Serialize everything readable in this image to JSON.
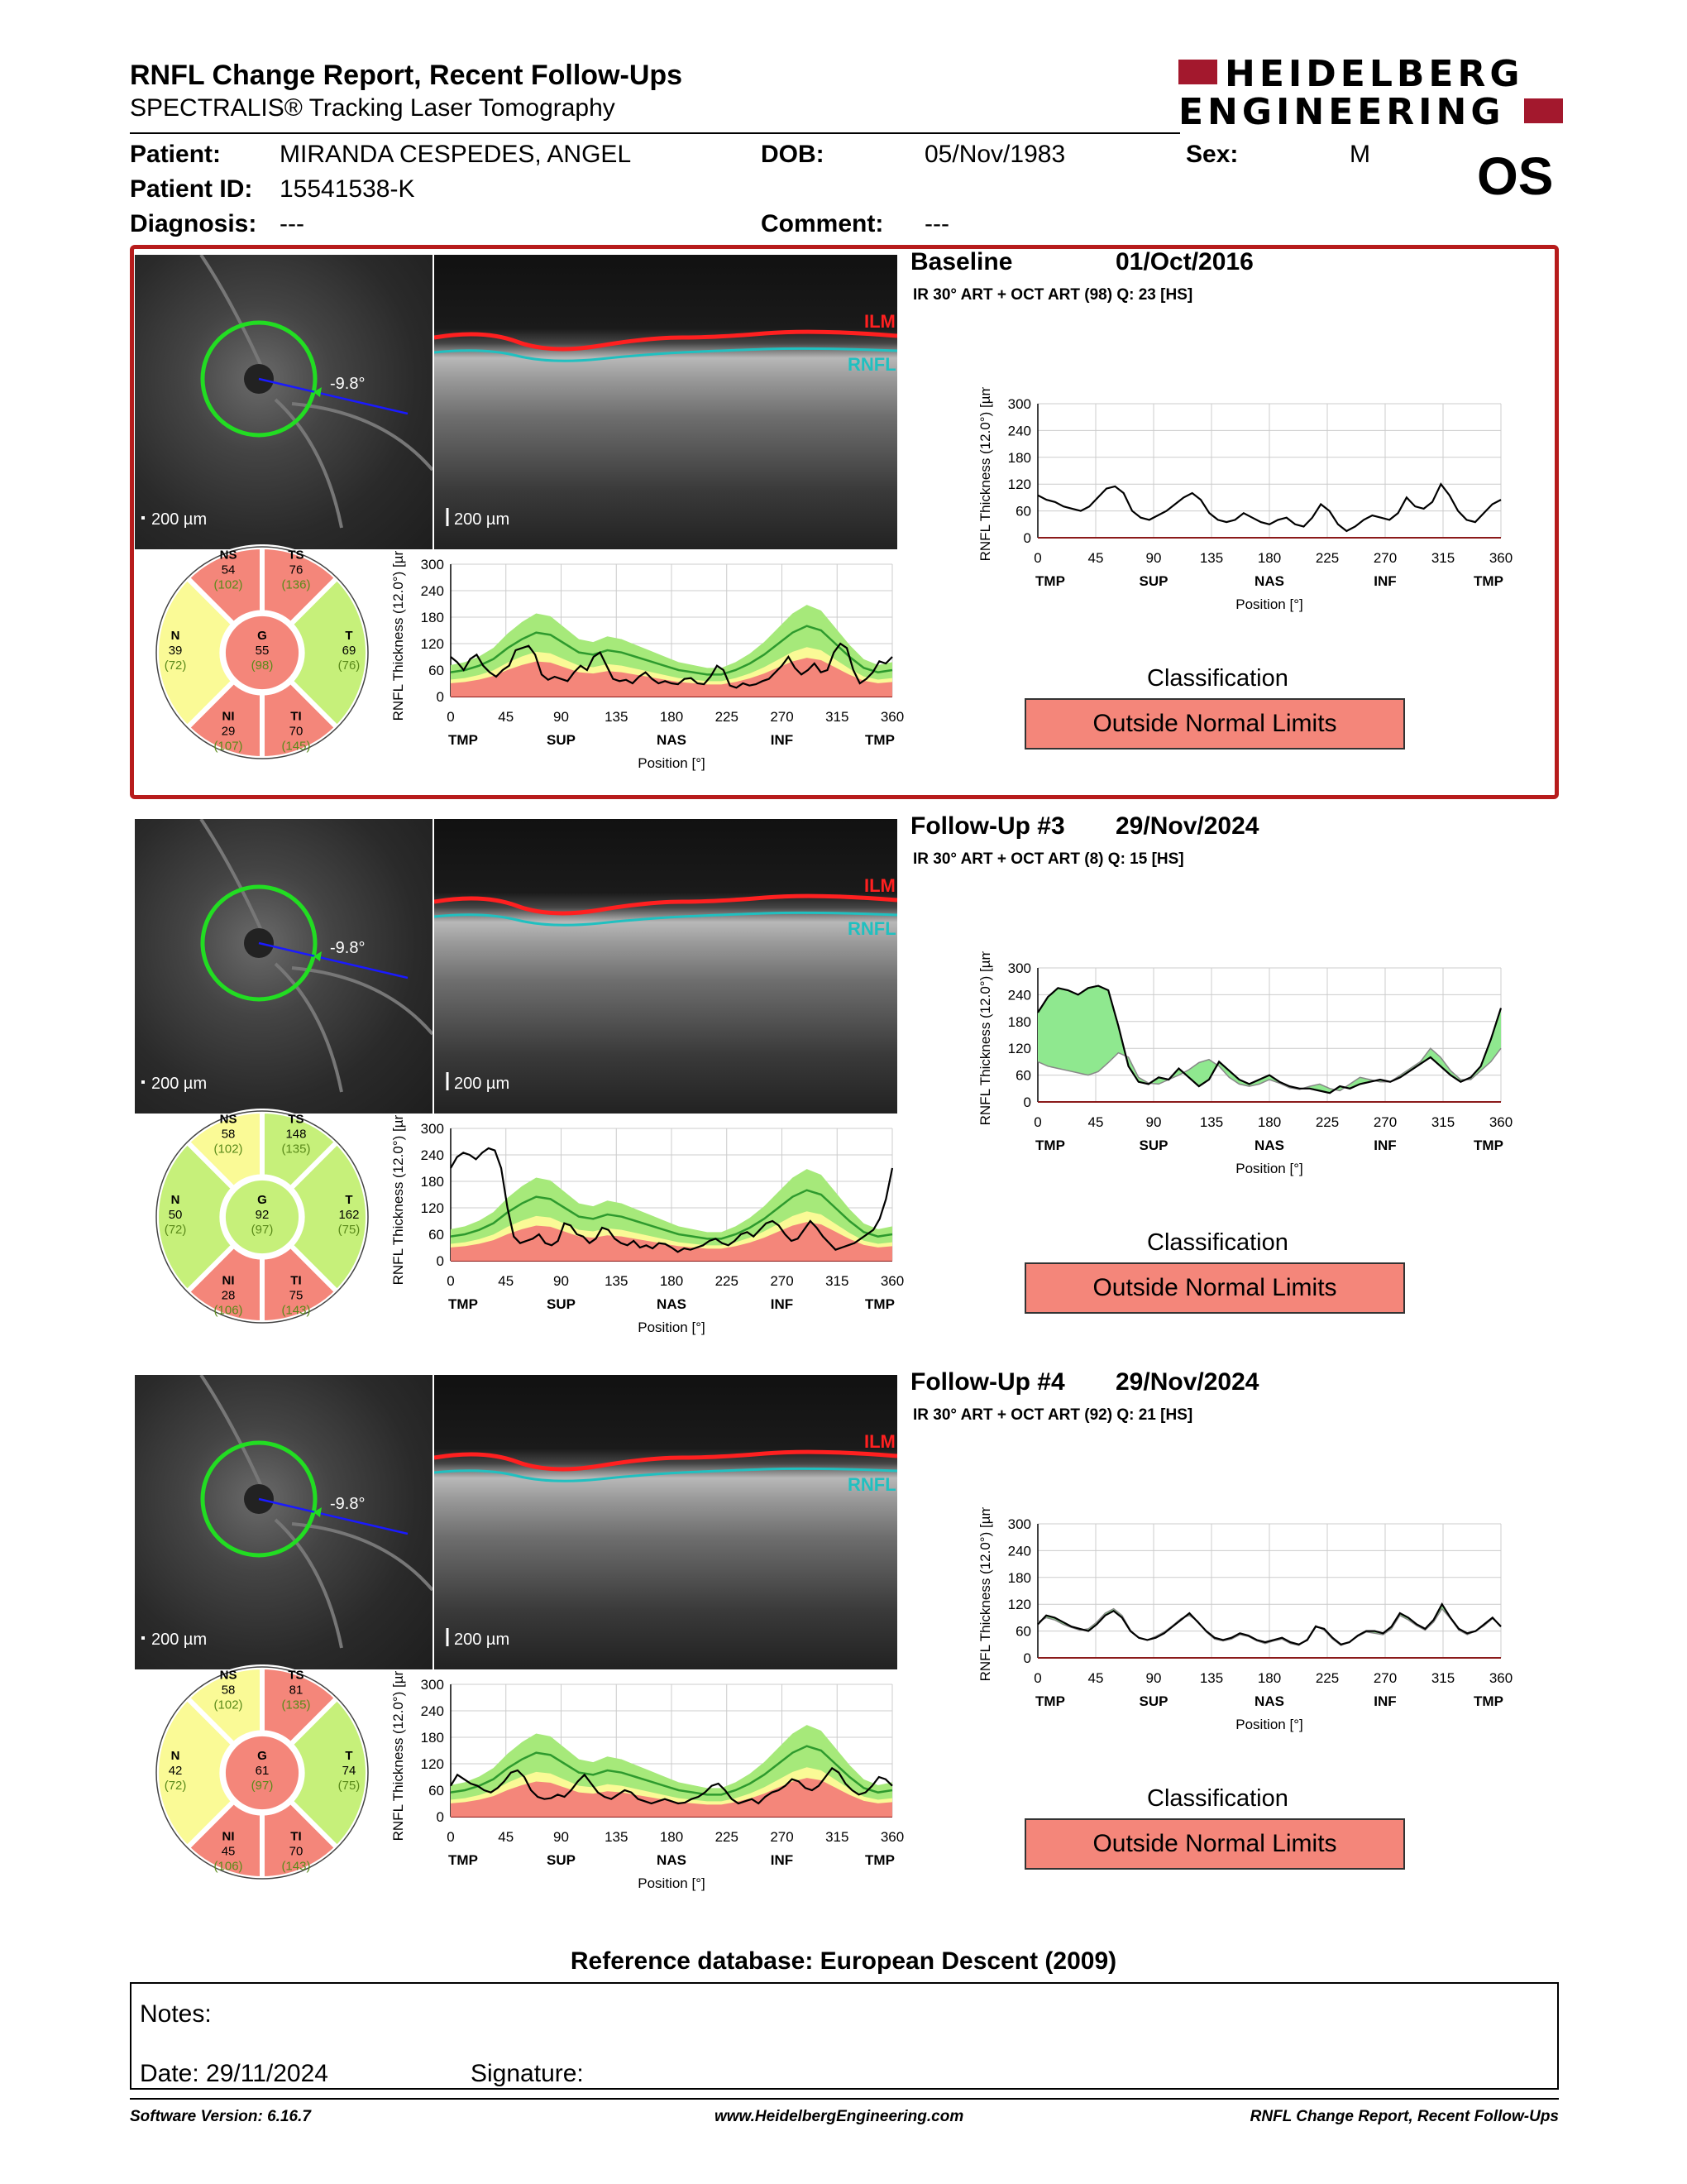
{
  "header": {
    "title": "RNFL Change Report, Recent Follow-Ups",
    "subtitle": "SPECTRALIS® Tracking Laser Tomography",
    "logo_line1": "HEIDELBERG",
    "logo_line2": "ENGINEERING",
    "brand_color": "#a3182d"
  },
  "patient": {
    "patient_label": "Patient:",
    "name": "MIRANDA CESPEDES, ANGEL",
    "dob_label": "DOB:",
    "dob": "05/Nov/1983",
    "sex_label": "Sex:",
    "sex": "M",
    "id_label": "Patient ID:",
    "id": "15541538-K",
    "diagnosis_label": "Diagnosis:",
    "diagnosis": "---",
    "comment_label": "Comment:",
    "comment": "---",
    "eye": "OS"
  },
  "common": {
    "scale": "200 µm",
    "angle": "-9.8°",
    "ilm": "ILM",
    "rnfl": "RNFL",
    "y_axis": "RNFL Thickness (12.0°) [µm]",
    "x_axis": "Position [°]",
    "x_ticks": [
      "0",
      "45",
      "90",
      "135",
      "180",
      "225",
      "270",
      "315",
      "360"
    ],
    "y_ticks": [
      "0",
      "60",
      "120",
      "180",
      "240",
      "300"
    ],
    "sectors": [
      "TMP",
      "SUP",
      "NAS",
      "INF",
      "TMP"
    ],
    "classification_label": "Classification"
  },
  "panels": [
    {
      "title": "Baseline",
      "date": "01/Oct/2016",
      "info": "IR 30° ART + OCT ART (98) Q: 23 [HS]",
      "classification": "Outside Normal Limits",
      "selected": true,
      "sectors": {
        "NS": {
          "v": "54",
          "n": "(102)",
          "c": "red"
        },
        "TS": {
          "v": "76",
          "n": "(136)",
          "c": "red"
        },
        "N": {
          "v": "39",
          "n": "(72)",
          "c": "yellow"
        },
        "G": {
          "v": "55",
          "n": "(98)",
          "c": "red"
        },
        "T": {
          "v": "69",
          "n": "(76)",
          "c": "green"
        },
        "NI": {
          "v": "29",
          "n": "(107)",
          "c": "red"
        },
        "TI": {
          "v": "70",
          "n": "(145)",
          "c": "red"
        }
      },
      "profile": [
        90,
        78,
        60,
        85,
        95,
        70,
        55,
        45,
        60,
        70,
        105,
        110,
        115,
        95,
        50,
        38,
        45,
        40,
        35,
        55,
        70,
        60,
        90,
        100,
        70,
        40,
        35,
        38,
        30,
        45,
        55,
        40,
        30,
        35,
        30,
        28,
        40,
        42,
        30,
        28,
        45,
        70,
        60,
        25,
        20,
        30,
        25,
        28,
        35,
        40,
        55,
        70,
        90,
        65,
        50,
        60,
        75,
        55,
        60,
        100,
        120,
        110,
        60,
        30,
        40,
        55,
        80,
        75,
        90
      ],
      "ref": [
        55,
        60,
        70,
        85,
        110,
        130,
        145,
        140,
        120,
        100,
        95,
        105,
        100,
        90,
        80,
        70,
        60,
        55,
        50,
        50,
        60,
        75,
        95,
        120,
        145,
        160,
        150,
        120,
        90,
        65,
        55,
        60
      ]
    },
    {
      "title": "Follow-Up #3",
      "date": "29/Nov/2024",
      "info": "IR 30° ART + OCT ART (8) Q: 15 [HS]",
      "classification": "Outside Normal Limits",
      "selected": false,
      "sectors": {
        "NS": {
          "v": "58",
          "n": "(102)",
          "c": "yellow"
        },
        "TS": {
          "v": "148",
          "n": "(135)",
          "c": "green"
        },
        "N": {
          "v": "50",
          "n": "(72)",
          "c": "green"
        },
        "G": {
          "v": "92",
          "n": "(97)",
          "c": "green"
        },
        "T": {
          "v": "162",
          "n": "(75)",
          "c": "green"
        },
        "NI": {
          "v": "28",
          "n": "(106)",
          "c": "red"
        },
        "TI": {
          "v": "75",
          "n": "(143)",
          "c": "red"
        }
      },
      "profile": [
        210,
        235,
        245,
        240,
        230,
        245,
        255,
        250,
        210,
        120,
        55,
        40,
        45,
        50,
        60,
        40,
        35,
        45,
        85,
        80,
        60,
        55,
        40,
        50,
        75,
        70,
        50,
        40,
        35,
        45,
        30,
        35,
        28,
        40,
        38,
        30,
        20,
        28,
        25,
        30,
        35,
        45,
        50,
        40,
        35,
        45,
        60,
        65,
        55,
        70,
        85,
        90,
        80,
        60,
        45,
        50,
        70,
        90,
        75,
        55,
        40,
        25,
        30,
        35,
        40,
        50,
        60,
        70,
        95,
        140,
        210
      ],
      "ref": [
        55,
        60,
        70,
        85,
        110,
        130,
        145,
        140,
        120,
        100,
        95,
        105,
        100,
        90,
        80,
        70,
        60,
        55,
        50,
        50,
        60,
        75,
        95,
        120,
        145,
        160,
        150,
        120,
        90,
        65,
        55,
        60
      ]
    },
    {
      "title": "Follow-Up #4",
      "date": "29/Nov/2024",
      "info": "IR 30° ART + OCT ART (92) Q: 21 [HS]",
      "classification": "Outside Normal Limits",
      "selected": false,
      "sectors": {
        "NS": {
          "v": "58",
          "n": "(102)",
          "c": "yellow"
        },
        "TS": {
          "v": "81",
          "n": "(135)",
          "c": "red"
        },
        "N": {
          "v": "42",
          "n": "(72)",
          "c": "yellow"
        },
        "G": {
          "v": "61",
          "n": "(97)",
          "c": "red"
        },
        "T": {
          "v": "74",
          "n": "(75)",
          "c": "green"
        },
        "NI": {
          "v": "45",
          "n": "(106)",
          "c": "red"
        },
        "TI": {
          "v": "70",
          "n": "(143)",
          "c": "red"
        }
      },
      "profile": [
        70,
        95,
        85,
        75,
        70,
        60,
        55,
        65,
        80,
        100,
        105,
        90,
        60,
        45,
        40,
        42,
        50,
        45,
        60,
        80,
        95,
        75,
        55,
        45,
        40,
        50,
        60,
        55,
        40,
        35,
        30,
        35,
        40,
        35,
        30,
        32,
        40,
        45,
        55,
        70,
        75,
        60,
        40,
        30,
        35,
        40,
        30,
        45,
        55,
        60,
        70,
        85,
        80,
        65,
        60,
        70,
        90,
        110,
        100,
        75,
        60,
        50,
        55,
        70,
        90,
        85,
        70
      ],
      "ref": [
        55,
        60,
        70,
        85,
        110,
        130,
        145,
        140,
        120,
        100,
        95,
        105,
        100,
        90,
        80,
        70,
        60,
        55,
        50,
        50,
        60,
        75,
        95,
        120,
        145,
        160,
        150,
        120,
        90,
        65,
        55,
        60
      ]
    }
  ],
  "change": [
    {
      "title": "Baseline",
      "values": [
        95,
        85,
        80,
        70,
        65,
        60,
        70,
        90,
        110,
        115,
        100,
        60,
        45,
        40,
        50,
        60,
        75,
        90,
        100,
        85,
        55,
        40,
        35,
        40,
        55,
        45,
        35,
        30,
        40,
        45,
        30,
        25,
        45,
        75,
        60,
        30,
        15,
        25,
        40,
        50,
        45,
        40,
        55,
        90,
        70,
        65,
        80,
        120,
        95,
        60,
        40,
        35,
        55,
        75,
        85
      ],
      "mode": "single"
    },
    {
      "title": "Follow-Up #3",
      "values": [
        200,
        235,
        255,
        250,
        240,
        255,
        260,
        250,
        170,
        80,
        45,
        40,
        55,
        50,
        75,
        55,
        35,
        50,
        90,
        70,
        50,
        40,
        50,
        60,
        45,
        35,
        30,
        30,
        25,
        20,
        35,
        30,
        40,
        45,
        50,
        45,
        55,
        70,
        85,
        100,
        80,
        60,
        45,
        55,
        80,
        140,
        210
      ],
      "base": [
        90,
        80,
        75,
        70,
        65,
        60,
        68,
        88,
        110,
        100,
        55,
        42,
        40,
        50,
        60,
        72,
        88,
        95,
        80,
        55,
        40,
        35,
        40,
        50,
        42,
        32,
        28,
        35,
        40,
        30,
        25,
        40,
        55,
        50,
        45,
        45,
        60,
        75,
        90,
        120,
        100,
        70,
        50,
        50,
        70,
        90,
        120
      ],
      "mode": "diff"
    },
    {
      "title": "Follow-Up #4",
      "values": [
        75,
        95,
        90,
        80,
        70,
        65,
        60,
        75,
        95,
        105,
        90,
        60,
        45,
        40,
        45,
        55,
        70,
        85,
        100,
        80,
        60,
        45,
        40,
        45,
        55,
        50,
        40,
        35,
        40,
        45,
        35,
        30,
        40,
        70,
        65,
        45,
        30,
        35,
        50,
        60,
        60,
        55,
        70,
        100,
        90,
        75,
        65,
        85,
        120,
        90,
        65,
        55,
        60,
        75,
        90,
        70
      ],
      "base": [
        80,
        90,
        85,
        75,
        68,
        62,
        65,
        80,
        100,
        110,
        95,
        62,
        44,
        40,
        48,
        58,
        72,
        88,
        95,
        82,
        58,
        42,
        38,
        42,
        52,
        48,
        38,
        32,
        38,
        42,
        32,
        28,
        42,
        72,
        62,
        42,
        28,
        35,
        48,
        58,
        55,
        52,
        65,
        95,
        85,
        72,
        62,
        80,
        110,
        88,
        62,
        52,
        60,
        72,
        88,
        72
      ],
      "mode": "diff"
    }
  ],
  "colors": {
    "red": "#f4867a",
    "yellow": "#fafa96",
    "green": "#c6f07a",
    "frame": "#b71c1c",
    "line": "#000000",
    "normal_line": "#2e9a2e",
    "normal_band": "#a6e97a",
    "below_band": "#f4867a"
  },
  "reference": "Reference database: European Descent (2009)",
  "notes": {
    "notes_label": "Notes:",
    "date_label": "Date: 29/11/2024",
    "signature_label": "Signature:"
  },
  "footer": {
    "left": "Software Version: 6.16.7",
    "center": "www.HeidelbergEngineering.com",
    "right": "RNFL Change Report, Recent Follow-Ups"
  }
}
